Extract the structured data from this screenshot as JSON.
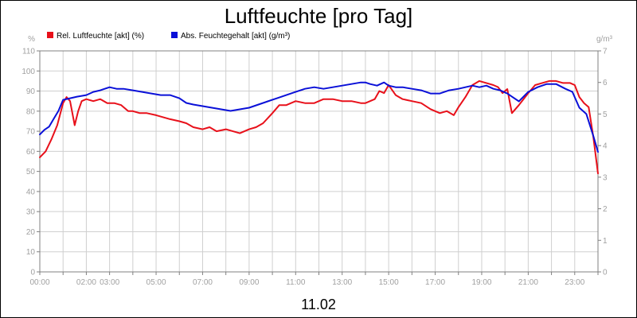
{
  "chart_data": {
    "type": "line",
    "title": "Luftfeuchte [pro Tag]",
    "subtitle": "11.02",
    "ylabel_left": "%",
    "ylabel_right": "g/m³",
    "x_ticks": [
      "00:00",
      "02:00",
      "03:00",
      "05:00",
      "07:00",
      "09:00",
      "11:00",
      "13:00",
      "15:00",
      "17:00",
      "19:00",
      "21:00",
      "23:00"
    ],
    "x_tick_hours": [
      0,
      2,
      3,
      5,
      7,
      9,
      11,
      13,
      15,
      17,
      19,
      21,
      23
    ],
    "xlim": [
      0,
      24
    ],
    "ylim_left": [
      0,
      110
    ],
    "ylim_right": [
      0,
      7
    ],
    "yticks_left": [
      0,
      10,
      20,
      30,
      40,
      50,
      60,
      70,
      80,
      90,
      100,
      110
    ],
    "yticks_right": [
      0,
      1,
      2,
      3,
      4,
      5,
      6,
      7
    ],
    "grid": true,
    "legend_position": "top-left",
    "series": [
      {
        "name": "Rel. Luftfeuchte [akt] (%)",
        "axis": "left",
        "color": "#e8101a",
        "x": [
          0,
          0.25,
          0.5,
          0.75,
          1.0,
          1.15,
          1.3,
          1.5,
          1.65,
          1.8,
          2.0,
          2.3,
          2.6,
          2.9,
          3.2,
          3.5,
          3.8,
          4.0,
          4.3,
          4.6,
          5.0,
          5.3,
          5.6,
          6.0,
          6.3,
          6.6,
          7.0,
          7.3,
          7.6,
          8.0,
          8.3,
          8.6,
          9.0,
          9.3,
          9.6,
          10.0,
          10.3,
          10.6,
          11.0,
          11.4,
          11.8,
          12.2,
          12.6,
          13.0,
          13.4,
          13.8,
          14.0,
          14.2,
          14.4,
          14.6,
          14.8,
          15.0,
          15.3,
          15.6,
          16.0,
          16.4,
          16.8,
          17.0,
          17.2,
          17.5,
          17.8,
          18.0,
          18.3,
          18.6,
          18.9,
          19.2,
          19.5,
          19.7,
          19.9,
          20.1,
          20.3,
          20.6,
          21.0,
          21.3,
          21.6,
          21.9,
          22.2,
          22.5,
          22.8,
          23.0,
          23.2,
          23.4,
          23.6,
          23.8,
          24.0
        ],
        "values": [
          57,
          60,
          66,
          73,
          84,
          87,
          85,
          73,
          80,
          85,
          86,
          85,
          86,
          84,
          84,
          83,
          80,
          80,
          79,
          79,
          78,
          77,
          76,
          75,
          74,
          72,
          71,
          72,
          70,
          71,
          70,
          69,
          71,
          72,
          74,
          79,
          83,
          83,
          85,
          84,
          84,
          86,
          86,
          85,
          85,
          84,
          84,
          85,
          86,
          90,
          89,
          93,
          88,
          86,
          85,
          84,
          81,
          80,
          79,
          80,
          78,
          82,
          87,
          93,
          95,
          94,
          93,
          92,
          89,
          91,
          79,
          83,
          89,
          93,
          94,
          95,
          95,
          94,
          94,
          93,
          87,
          84,
          82,
          67,
          49
        ]
      },
      {
        "name": "Abs. Feuchtegehalt [akt] (g/m³)",
        "axis": "right",
        "color": "#0a10d8",
        "x": [
          0,
          0.2,
          0.4,
          0.6,
          0.8,
          1.0,
          1.3,
          1.6,
          2.0,
          2.3,
          2.6,
          3.0,
          3.3,
          3.6,
          4.0,
          4.4,
          4.8,
          5.2,
          5.6,
          6.0,
          6.3,
          6.6,
          7.0,
          7.4,
          7.8,
          8.2,
          8.6,
          9.0,
          9.4,
          9.8,
          10.2,
          10.6,
          11.0,
          11.4,
          11.8,
          12.2,
          12.6,
          13.0,
          13.4,
          13.8,
          14.0,
          14.2,
          14.5,
          14.8,
          15.0,
          15.3,
          15.6,
          16.0,
          16.4,
          16.8,
          17.2,
          17.6,
          18.0,
          18.3,
          18.6,
          18.9,
          19.2,
          19.5,
          19.8,
          20.1,
          20.3,
          20.6,
          21.0,
          21.4,
          21.8,
          22.2,
          22.6,
          22.9,
          23.2,
          23.5,
          23.8,
          24.0
        ],
        "values": [
          4.35,
          4.5,
          4.6,
          4.85,
          5.1,
          5.45,
          5.5,
          5.55,
          5.6,
          5.7,
          5.75,
          5.85,
          5.8,
          5.8,
          5.75,
          5.7,
          5.65,
          5.6,
          5.6,
          5.5,
          5.35,
          5.3,
          5.25,
          5.2,
          5.15,
          5.1,
          5.15,
          5.2,
          5.3,
          5.4,
          5.5,
          5.6,
          5.7,
          5.8,
          5.85,
          5.8,
          5.85,
          5.9,
          5.95,
          6.0,
          6.0,
          5.95,
          5.9,
          6.0,
          5.9,
          5.85,
          5.85,
          5.8,
          5.75,
          5.65,
          5.65,
          5.75,
          5.8,
          5.85,
          5.9,
          5.85,
          5.9,
          5.8,
          5.75,
          5.65,
          5.55,
          5.4,
          5.7,
          5.85,
          5.95,
          5.95,
          5.8,
          5.7,
          5.2,
          5.0,
          4.3,
          3.8
        ]
      }
    ]
  }
}
